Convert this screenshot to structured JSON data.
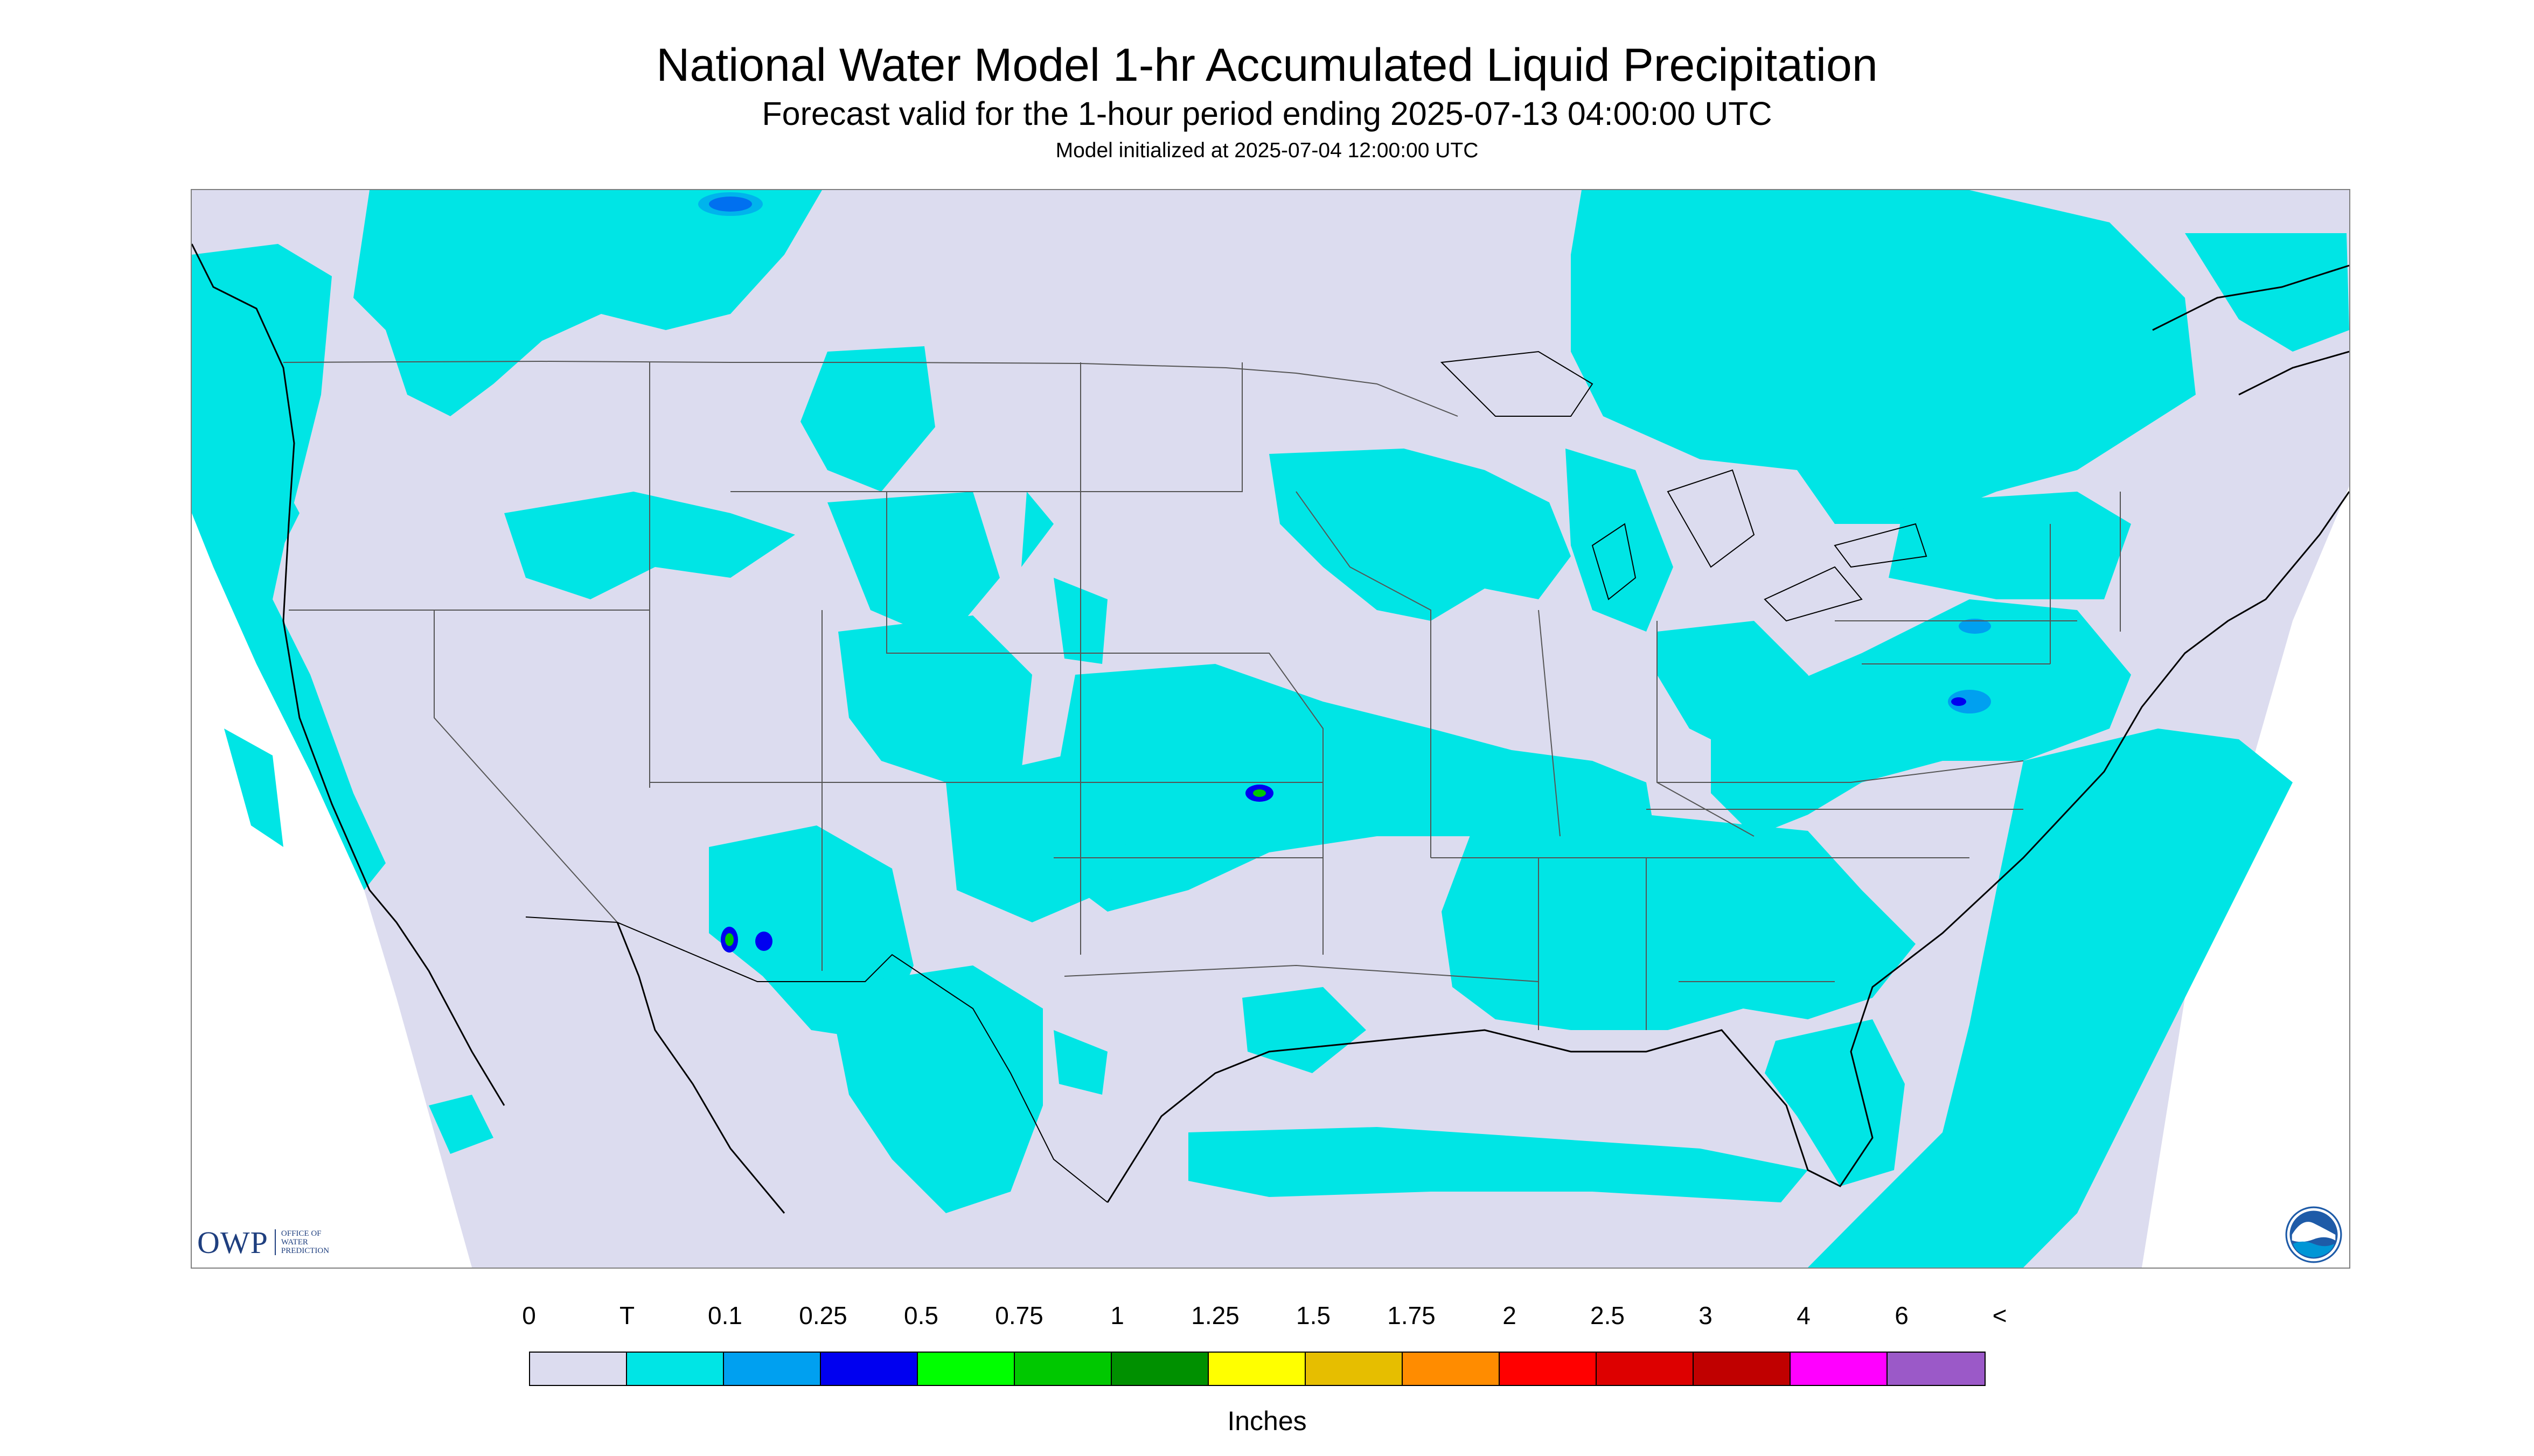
{
  "header": {
    "title": "National Water Model 1-hr Accumulated Liquid Precipitation",
    "subtitle": "Forecast valid for the 1-hour period ending 2025-07-13 04:00:00 UTC",
    "init_line": "Model initialized at 2025-07-04 12:00:00 UTC"
  },
  "map": {
    "region": "Continental United States",
    "colors": {
      "no_data": "#ffffff",
      "background": "#dcdcef",
      "trace": "#00e5e5",
      "boundary": "#000000",
      "state_line": "#555555"
    },
    "notable_cells": [
      {
        "area": "Arizona",
        "max_class": "0.75"
      },
      {
        "area": "Kansas",
        "max_class": "0.75"
      },
      {
        "area": "Pennsylvania",
        "max_class": "0.25"
      }
    ]
  },
  "logos": {
    "owp_mark": "OWP",
    "owp_text": "OFFICE OF WATER PREDICTION",
    "noaa_icon": "noaa-logo"
  },
  "legend": {
    "ticks": [
      "0",
      "T",
      "0.1",
      "0.25",
      "0.5",
      "0.75",
      "1",
      "1.25",
      "1.5",
      "1.75",
      "2",
      "2.5",
      "3",
      "4",
      "6",
      "<"
    ],
    "colors": [
      "#dcdcef",
      "#00e5e5",
      "#00a0f0",
      "#0000f0",
      "#00ff00",
      "#00c800",
      "#009000",
      "#ffff00",
      "#e6be00",
      "#ff8c00",
      "#ff0000",
      "#dd0000",
      "#c00000",
      "#ff00ff",
      "#9b59c8"
    ],
    "units": "Inches"
  }
}
